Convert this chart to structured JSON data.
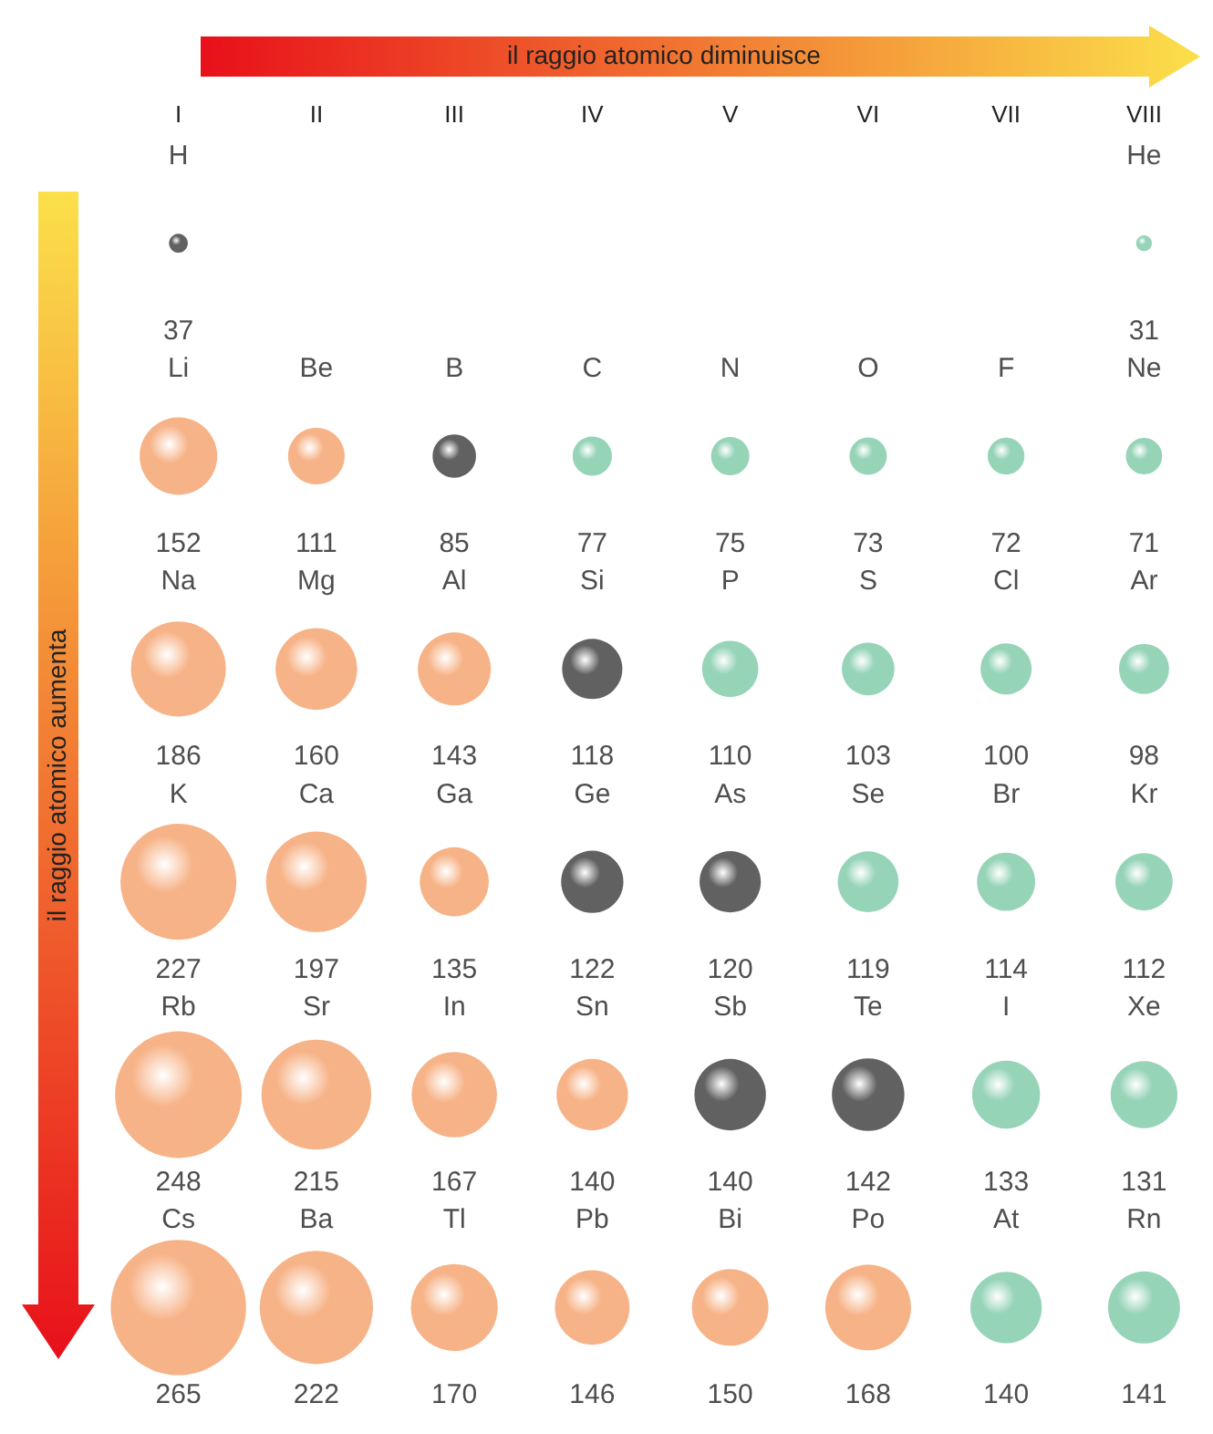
{
  "chart_data": {
    "type": "other",
    "data_labels": true,
    "categories": [
      "I",
      "II",
      "III",
      "IV",
      "V",
      "VI",
      "VII",
      "VIII"
    ],
    "series": [
      {
        "values": [
          37,
          null,
          null,
          null,
          null,
          null,
          null,
          31
        ],
        "colors": [
          "#3a3a3a",
          null,
          null,
          null,
          null,
          null,
          null,
          "#7cc9a6"
        ]
      },
      {
        "values": [
          152,
          111,
          85,
          77,
          75,
          73,
          72,
          71
        ],
        "colors": [
          "#f5a06a",
          "#f5a06a",
          "#3a3a3a",
          "#7cc9a6",
          "#7cc9a6",
          "#7cc9a6",
          "#7cc9a6",
          "#7cc9a6"
        ]
      },
      {
        "values": [
          186,
          160,
          143,
          118,
          110,
          103,
          100,
          98
        ],
        "colors": [
          "#f5a06a",
          "#f5a06a",
          "#f5a06a",
          "#3a3a3a",
          "#7cc9a6",
          "#7cc9a6",
          "#7cc9a6",
          "#7cc9a6"
        ]
      },
      {
        "values": [
          227,
          197,
          135,
          122,
          120,
          119,
          114,
          112
        ],
        "colors": [
          "#f5a06a",
          "#f5a06a",
          "#f5a06a",
          "#3a3a3a",
          "#3a3a3a",
          "#7cc9a6",
          "#7cc9a6",
          "#7cc9a6"
        ]
      },
      {
        "values": [
          248,
          215,
          167,
          140,
          140,
          142,
          133,
          131
        ],
        "colors": [
          "#f5a06a",
          "#f5a06a",
          "#f5a06a",
          "#f5a06a",
          "#3a3a3a",
          "#3a3a3a",
          "#7cc9a6",
          "#7cc9a6"
        ]
      },
      {
        "values": [
          265,
          222,
          170,
          146,
          150,
          168,
          140,
          141
        ],
        "colors": [
          "#f5a06a",
          "#f5a06a",
          "#f5a06a",
          "#f5a06a",
          "#f5a06a",
          "#f5a06a",
          "#7cc9a6",
          "#7cc9a6"
        ]
      }
    ],
    "annotations": [
      "il raggio atomico diminuisce",
      "il raggio atomico aumenta",
      "H",
      "He",
      "Li",
      "Be",
      "B",
      "C",
      "N",
      "O",
      "F",
      "Ne",
      "Na",
      "Mg",
      "Al",
      "Si",
      "P",
      "S",
      "Cl",
      "Ar",
      "K",
      "Ca",
      "Ga",
      "Ge",
      "As",
      "Se",
      "Br",
      "Kr",
      "Rb",
      "Sr",
      "In",
      "Sn",
      "Sb",
      "Te",
      "I",
      "Xe",
      "Cs",
      "Ba",
      "Tl",
      "Pb",
      "Bi",
      "Po",
      "At",
      "Rn"
    ]
  }
}
